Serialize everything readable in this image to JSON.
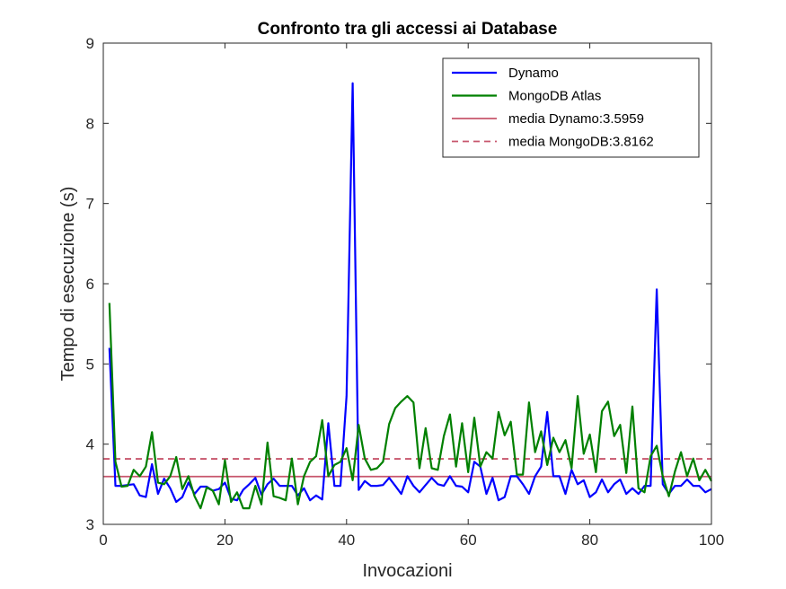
{
  "chart_data": {
    "type": "line",
    "title": "Confronto tra gli accessi ai Database",
    "xlabel": "Invocazioni",
    "ylabel": "Tempo di esecuzione (s)",
    "xlim": [
      0,
      100
    ],
    "ylim": [
      3,
      9
    ],
    "xticks": [
      0,
      20,
      40,
      60,
      80,
      100
    ],
    "yticks": [
      3,
      4,
      5,
      6,
      7,
      8,
      9
    ],
    "grid": false,
    "legend_position": "top-right",
    "x": [
      1,
      2,
      3,
      4,
      5,
      6,
      7,
      8,
      9,
      10,
      11,
      12,
      13,
      14,
      15,
      16,
      17,
      18,
      19,
      20,
      21,
      22,
      23,
      24,
      25,
      26,
      27,
      28,
      29,
      30,
      31,
      32,
      33,
      34,
      35,
      36,
      37,
      38,
      39,
      40,
      41,
      42,
      43,
      44,
      45,
      46,
      47,
      48,
      49,
      50,
      51,
      52,
      53,
      54,
      55,
      56,
      57,
      58,
      59,
      60,
      61,
      62,
      63,
      64,
      65,
      66,
      67,
      68,
      69,
      70,
      71,
      72,
      73,
      74,
      75,
      76,
      77,
      78,
      79,
      80,
      81,
      82,
      83,
      84,
      85,
      86,
      87,
      88,
      89,
      90,
      91,
      92,
      93,
      94,
      95,
      96,
      97,
      98,
      99,
      100
    ],
    "series": [
      {
        "name": "Dynamo",
        "color": "#0000ff",
        "style": "solid",
        "values": [
          5.2,
          3.48,
          3.48,
          3.49,
          3.5,
          3.36,
          3.34,
          3.75,
          3.38,
          3.57,
          3.45,
          3.28,
          3.34,
          3.52,
          3.38,
          3.47,
          3.47,
          3.42,
          3.44,
          3.52,
          3.32,
          3.3,
          3.43,
          3.5,
          3.58,
          3.37,
          3.5,
          3.57,
          3.48,
          3.48,
          3.48,
          3.36,
          3.45,
          3.3,
          3.36,
          3.31,
          4.26,
          3.48,
          3.48,
          4.6,
          8.5,
          3.43,
          3.54,
          3.48,
          3.48,
          3.49,
          3.58,
          3.48,
          3.38,
          3.6,
          3.48,
          3.4,
          3.49,
          3.58,
          3.5,
          3.48,
          3.6,
          3.48,
          3.47,
          3.4,
          3.78,
          3.72,
          3.38,
          3.58,
          3.3,
          3.34,
          3.6,
          3.6,
          3.5,
          3.38,
          3.6,
          3.72,
          4.4,
          3.6,
          3.6,
          3.38,
          3.68,
          3.5,
          3.55,
          3.34,
          3.4,
          3.56,
          3.4,
          3.5,
          3.56,
          3.38,
          3.45,
          3.38,
          3.48,
          3.48,
          5.93,
          3.5,
          3.38,
          3.48,
          3.48,
          3.56,
          3.48,
          3.48,
          3.4,
          3.44
        ]
      },
      {
        "name": "MongoDB Atlas",
        "color": "#008000",
        "style": "solid",
        "values": [
          5.76,
          3.78,
          3.47,
          3.48,
          3.68,
          3.6,
          3.72,
          4.15,
          3.52,
          3.5,
          3.6,
          3.84,
          3.44,
          3.6,
          3.35,
          3.2,
          3.46,
          3.42,
          3.25,
          3.8,
          3.28,
          3.4,
          3.2,
          3.2,
          3.48,
          3.25,
          4.02,
          3.35,
          3.33,
          3.3,
          3.82,
          3.25,
          3.6,
          3.78,
          3.85,
          4.3,
          3.6,
          3.74,
          3.78,
          3.95,
          3.55,
          4.24,
          3.82,
          3.68,
          3.7,
          3.78,
          4.25,
          4.45,
          4.53,
          4.6,
          4.52,
          3.7,
          4.2,
          3.7,
          3.68,
          4.1,
          4.37,
          3.72,
          4.26,
          3.65,
          4.33,
          3.72,
          3.9,
          3.82,
          4.4,
          4.11,
          4.28,
          3.62,
          3.62,
          4.52,
          3.9,
          4.16,
          3.74,
          4.08,
          3.9,
          4.05,
          3.7,
          4.6,
          3.88,
          4.12,
          3.65,
          4.41,
          4.53,
          4.1,
          4.24,
          3.64,
          4.47,
          3.45,
          3.4,
          3.85,
          3.98,
          3.6,
          3.35,
          3.66,
          3.9,
          3.6,
          3.82,
          3.55,
          3.68,
          3.54
        ]
      },
      {
        "name": "media Dynamo:3.5959",
        "color": "#c7566c",
        "style": "solid",
        "constant": 3.5959
      },
      {
        "name": "media MongoDB:3.8162",
        "color": "#c7566c",
        "style": "dashed",
        "constant": 3.8162
      }
    ]
  }
}
